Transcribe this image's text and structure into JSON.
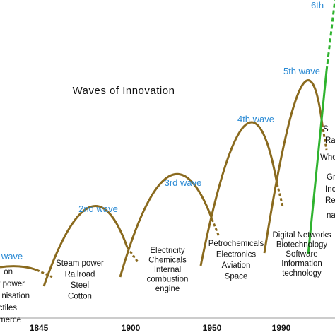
{
  "title": "Waves of Innovation",
  "axis_labels": [
    "1845",
    "1900",
    "1950",
    "1990"
  ],
  "waves": [
    {
      "label": "wave",
      "lines": [
        "on",
        "r power",
        "nisation",
        "ctiles",
        "merce"
      ]
    },
    {
      "label": "2nd wave",
      "lines": [
        "Steam power",
        "Railroad",
        "Steel",
        "Cotton"
      ]
    },
    {
      "label": "3rd wave",
      "lines": [
        "Electricity",
        "Chemicals",
        "Internal",
        "combustion",
        "engine"
      ]
    },
    {
      "label": "4th wave",
      "lines": [
        "Petrochemicals",
        "Electronics",
        "Aviation",
        "Space"
      ]
    },
    {
      "label": "5th wave",
      "lines": [
        "Digital Networks",
        "Biotechnology",
        "Software",
        "Information",
        "technology"
      ]
    },
    {
      "label": "6th",
      "lines": [
        "S",
        "Ra",
        "Who",
        "Gr",
        "Inc",
        "Re",
        "na"
      ]
    }
  ]
}
